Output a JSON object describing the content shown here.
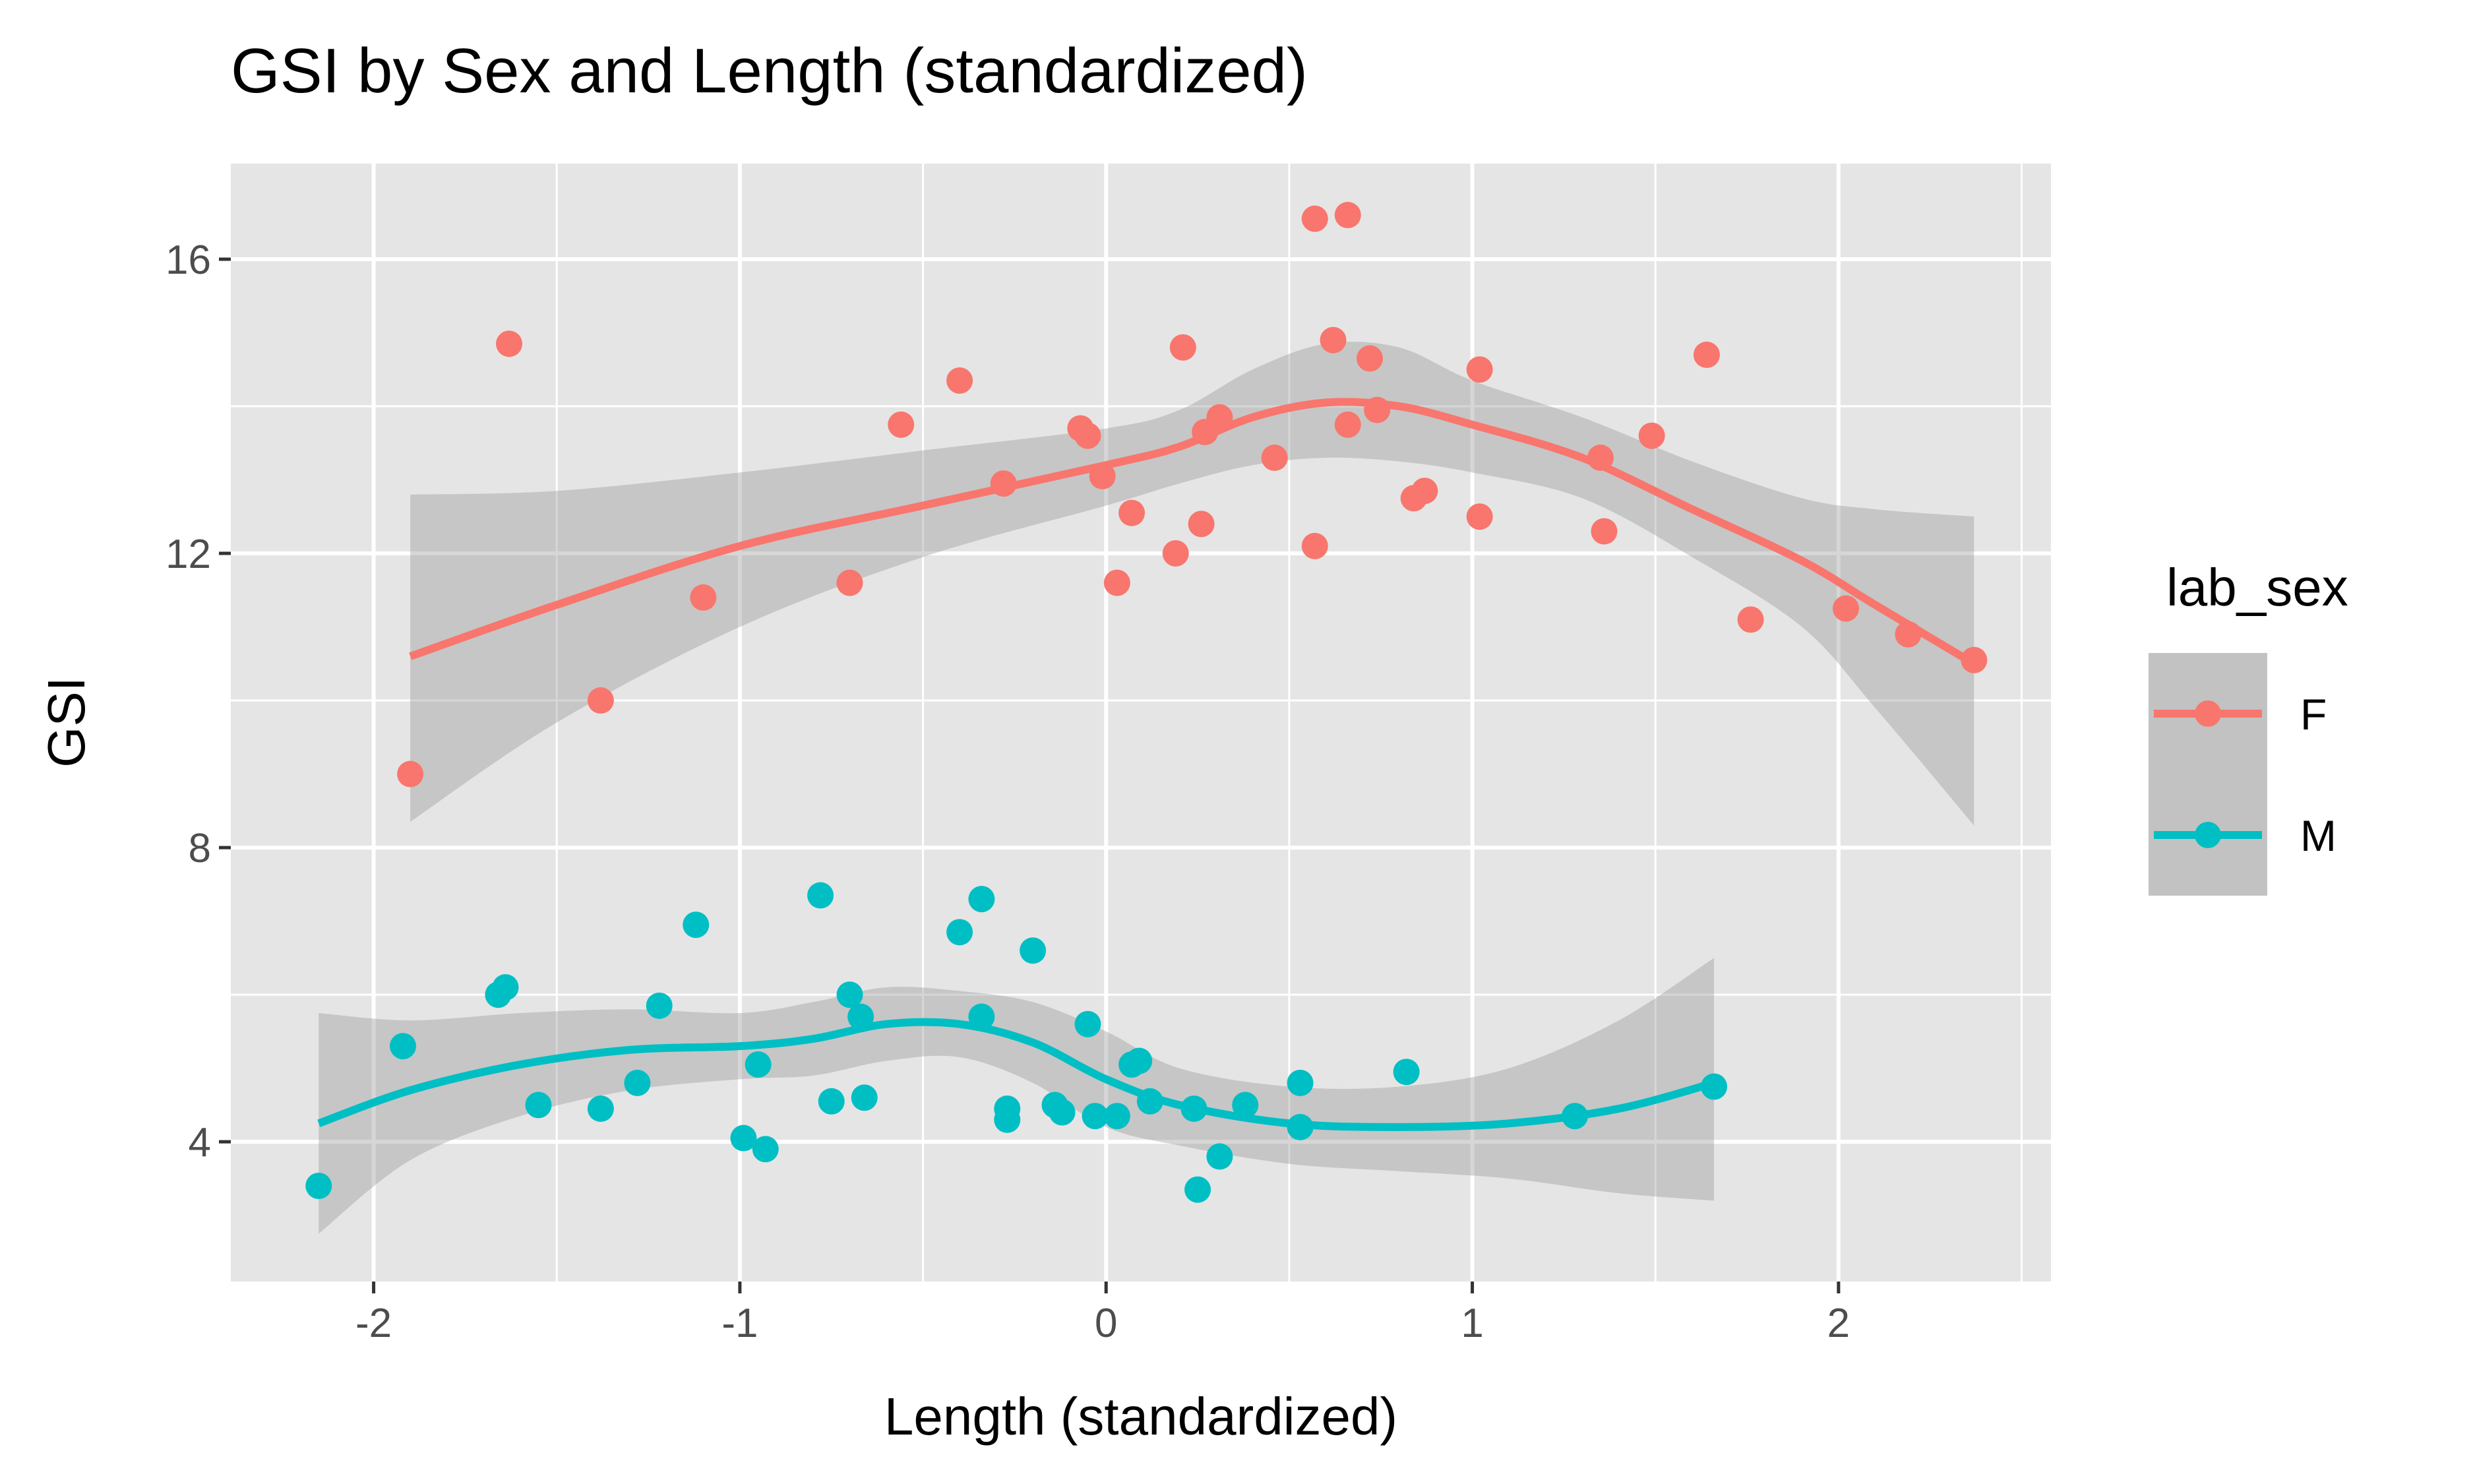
{
  "chart_data": {
    "type": "scatter",
    "title": "GSI by Sex and Length (standardized)",
    "xlabel": "Length (standardized)",
    "ylabel": "GSI",
    "xlim": [
      -2.39,
      2.58
    ],
    "ylim": [
      2.1,
      17.3
    ],
    "x_ticks": [
      -2,
      -1,
      0,
      1,
      2
    ],
    "y_ticks": [
      4,
      8,
      12,
      16
    ],
    "x_tick_labels": [
      "-2",
      "-1",
      "0",
      "1",
      "2"
    ],
    "y_tick_labels": [
      "4",
      "8",
      "12",
      "16"
    ],
    "grid": true,
    "background": "#e5e5e5",
    "legend": {
      "title": "lab_sex",
      "position": "right",
      "entries": [
        "F",
        "M"
      ]
    },
    "series": [
      {
        "name": "F",
        "color": "#f8766d",
        "points": [
          [
            -1.9,
            9.0
          ],
          [
            -1.63,
            14.85
          ],
          [
            -1.38,
            10.0
          ],
          [
            -1.1,
            11.4
          ],
          [
            -0.7,
            11.6
          ],
          [
            -0.56,
            13.75
          ],
          [
            -0.4,
            14.35
          ],
          [
            -0.28,
            12.95
          ],
          [
            -0.07,
            13.7
          ],
          [
            -0.05,
            13.6
          ],
          [
            -0.01,
            13.05
          ],
          [
            0.03,
            11.6
          ],
          [
            0.07,
            12.55
          ],
          [
            0.19,
            12.0
          ],
          [
            0.21,
            14.8
          ],
          [
            0.26,
            12.4
          ],
          [
            0.27,
            13.65
          ],
          [
            0.31,
            13.85
          ],
          [
            0.46,
            13.3
          ],
          [
            0.57,
            16.55
          ],
          [
            0.57,
            12.1
          ],
          [
            0.62,
            14.9
          ],
          [
            0.66,
            16.6
          ],
          [
            0.66,
            13.75
          ],
          [
            0.72,
            14.65
          ],
          [
            0.74,
            13.95
          ],
          [
            0.84,
            12.75
          ],
          [
            0.87,
            12.85
          ],
          [
            1.02,
            14.5
          ],
          [
            1.02,
            12.5
          ],
          [
            1.35,
            13.3
          ],
          [
            1.36,
            12.3
          ],
          [
            1.49,
            13.6
          ],
          [
            1.64,
            14.7
          ],
          [
            1.76,
            11.1
          ],
          [
            2.02,
            11.25
          ],
          [
            2.19,
            10.9
          ],
          [
            2.37,
            10.55
          ]
        ],
        "smooth": [
          [
            -1.9,
            10.6
          ],
          [
            -1.5,
            11.3
          ],
          [
            -1.0,
            12.1
          ],
          [
            -0.5,
            12.65
          ],
          [
            0.0,
            13.2
          ],
          [
            0.2,
            13.45
          ],
          [
            0.4,
            13.85
          ],
          [
            0.6,
            14.05
          ],
          [
            0.8,
            14.0
          ],
          [
            1.0,
            13.75
          ],
          [
            1.3,
            13.3
          ],
          [
            1.6,
            12.6
          ],
          [
            1.9,
            11.9
          ],
          [
            2.1,
            11.3
          ],
          [
            2.37,
            10.5
          ]
        ],
        "band_upper": [
          [
            -1.9,
            12.8
          ],
          [
            -1.5,
            12.85
          ],
          [
            -1.0,
            13.1
          ],
          [
            -0.5,
            13.4
          ],
          [
            0.0,
            13.7
          ],
          [
            0.2,
            13.95
          ],
          [
            0.4,
            14.5
          ],
          [
            0.6,
            14.85
          ],
          [
            0.8,
            14.8
          ],
          [
            1.0,
            14.35
          ],
          [
            1.3,
            13.85
          ],
          [
            1.6,
            13.25
          ],
          [
            1.9,
            12.75
          ],
          [
            2.1,
            12.6
          ],
          [
            2.37,
            12.5
          ]
        ],
        "band_lower": [
          [
            -1.9,
            8.35
          ],
          [
            -1.5,
            9.7
          ],
          [
            -1.0,
            11.0
          ],
          [
            -0.5,
            11.95
          ],
          [
            0.0,
            12.65
          ],
          [
            0.2,
            12.95
          ],
          [
            0.4,
            13.2
          ],
          [
            0.6,
            13.3
          ],
          [
            0.8,
            13.25
          ],
          [
            1.0,
            13.1
          ],
          [
            1.3,
            12.75
          ],
          [
            1.6,
            11.95
          ],
          [
            1.9,
            11.0
          ],
          [
            2.1,
            9.9
          ],
          [
            2.37,
            8.3
          ]
        ]
      },
      {
        "name": "M",
        "color": "#00bfc4",
        "points": [
          [
            -2.15,
            3.4
          ],
          [
            -1.92,
            5.3
          ],
          [
            -1.66,
            6.0
          ],
          [
            -1.64,
            6.1
          ],
          [
            -1.55,
            4.5
          ],
          [
            -1.38,
            4.45
          ],
          [
            -1.28,
            4.8
          ],
          [
            -1.22,
            5.85
          ],
          [
            -1.12,
            6.95
          ],
          [
            -0.99,
            4.05
          ],
          [
            -0.95,
            5.05
          ],
          [
            -0.93,
            3.9
          ],
          [
            -0.78,
            7.35
          ],
          [
            -0.75,
            4.55
          ],
          [
            -0.7,
            6.0
          ],
          [
            -0.67,
            5.7
          ],
          [
            -0.66,
            4.6
          ],
          [
            -0.4,
            6.85
          ],
          [
            -0.34,
            7.3
          ],
          [
            -0.34,
            5.7
          ],
          [
            -0.27,
            4.45
          ],
          [
            -0.27,
            4.3
          ],
          [
            -0.2,
            6.6
          ],
          [
            -0.14,
            4.5
          ],
          [
            -0.12,
            4.4
          ],
          [
            -0.05,
            5.6
          ],
          [
            -0.03,
            4.35
          ],
          [
            0.03,
            4.35
          ],
          [
            0.07,
            5.05
          ],
          [
            0.09,
            5.1
          ],
          [
            0.12,
            4.55
          ],
          [
            0.24,
            4.45
          ],
          [
            0.25,
            3.35
          ],
          [
            0.31,
            3.8
          ],
          [
            0.38,
            4.5
          ],
          [
            0.53,
            4.8
          ],
          [
            0.53,
            4.2
          ],
          [
            0.82,
            4.95
          ],
          [
            1.28,
            4.35
          ],
          [
            1.66,
            4.75
          ]
        ],
        "smooth": [
          [
            -2.15,
            4.25
          ],
          [
            -1.9,
            4.7
          ],
          [
            -1.6,
            5.05
          ],
          [
            -1.3,
            5.25
          ],
          [
            -1.0,
            5.3
          ],
          [
            -0.8,
            5.4
          ],
          [
            -0.6,
            5.6
          ],
          [
            -0.4,
            5.6
          ],
          [
            -0.2,
            5.35
          ],
          [
            0.0,
            4.85
          ],
          [
            0.2,
            4.5
          ],
          [
            0.5,
            4.25
          ],
          [
            0.8,
            4.2
          ],
          [
            1.1,
            4.25
          ],
          [
            1.4,
            4.45
          ],
          [
            1.66,
            4.8
          ]
        ],
        "band_upper": [
          [
            -2.15,
            5.75
          ],
          [
            -1.9,
            5.65
          ],
          [
            -1.6,
            5.75
          ],
          [
            -1.3,
            5.8
          ],
          [
            -1.0,
            5.75
          ],
          [
            -0.8,
            5.9
          ],
          [
            -0.6,
            6.1
          ],
          [
            -0.4,
            6.05
          ],
          [
            -0.2,
            5.9
          ],
          [
            0.0,
            5.5
          ],
          [
            0.2,
            5.0
          ],
          [
            0.5,
            4.75
          ],
          [
            0.8,
            4.75
          ],
          [
            1.1,
            5.0
          ],
          [
            1.4,
            5.65
          ],
          [
            1.66,
            6.5
          ]
        ],
        "band_lower": [
          [
            -2.15,
            2.75
          ],
          [
            -1.9,
            3.75
          ],
          [
            -1.6,
            4.35
          ],
          [
            -1.3,
            4.7
          ],
          [
            -1.0,
            4.85
          ],
          [
            -0.8,
            4.9
          ],
          [
            -0.6,
            5.1
          ],
          [
            -0.4,
            5.15
          ],
          [
            -0.2,
            4.8
          ],
          [
            0.0,
            4.2
          ],
          [
            0.2,
            3.95
          ],
          [
            0.5,
            3.7
          ],
          [
            0.8,
            3.6
          ],
          [
            1.1,
            3.5
          ],
          [
            1.4,
            3.3
          ],
          [
            1.66,
            3.2
          ]
        ]
      }
    ]
  }
}
